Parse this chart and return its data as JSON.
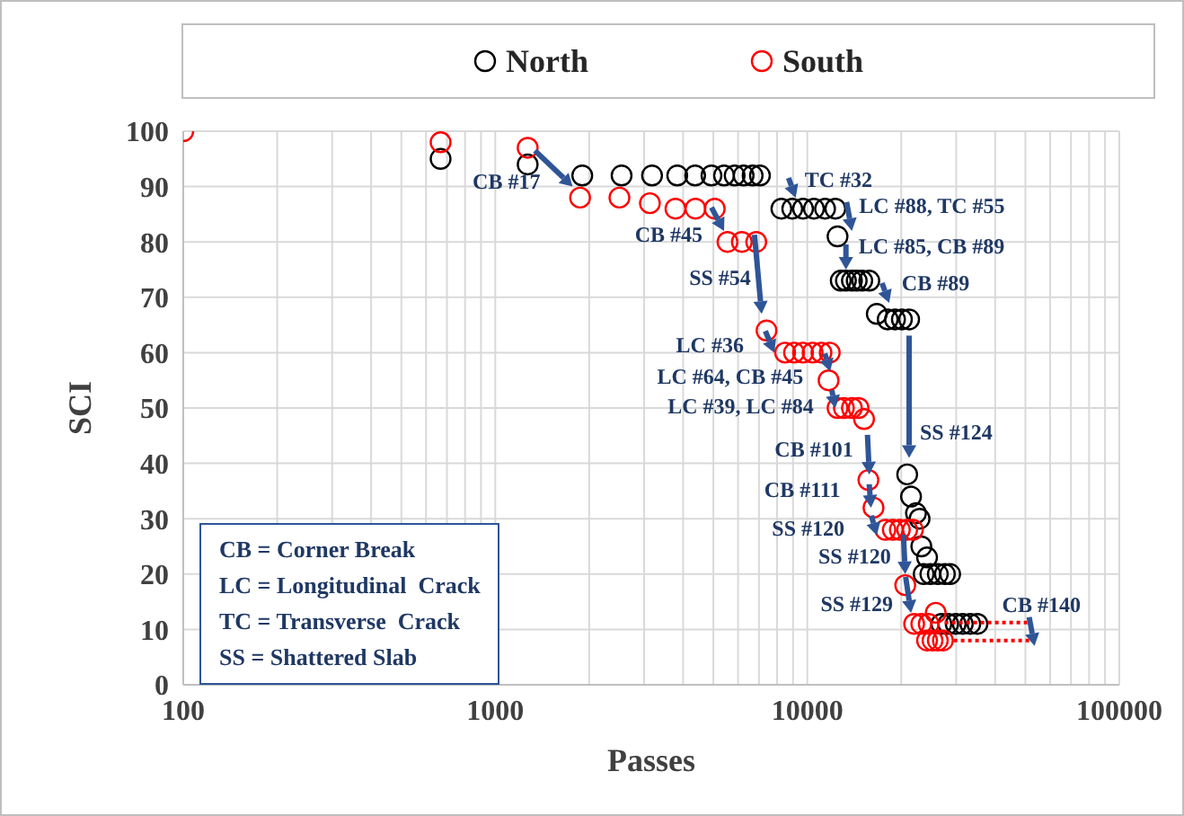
{
  "chart_data": {
    "type": "scatter",
    "xlabel": "Passes",
    "ylabel": "SCI",
    "log": "x",
    "grid": true,
    "legend": "top",
    "marker": "circle",
    "xlim": [
      100,
      100000
    ],
    "xticks": [
      100,
      {
        "value": 200,
        "label": null
      },
      {
        "value": 300,
        "label": null
      },
      {
        "value": 400,
        "label": null
      },
      {
        "value": 500,
        "label": null
      },
      {
        "value": 600,
        "label": null
      },
      {
        "value": 700,
        "label": null
      },
      {
        "value": 800,
        "label": null
      },
      {
        "value": 900,
        "label": null
      },
      1000,
      {
        "value": 2000,
        "label": null
      },
      {
        "value": 3000,
        "label": null
      },
      {
        "value": 4000,
        "label": null
      },
      {
        "value": 5000,
        "label": null
      },
      {
        "value": 6000,
        "label": null
      },
      {
        "value": 7000,
        "label": null
      },
      {
        "value": 8000,
        "label": null
      },
      {
        "value": 9000,
        "label": null
      },
      10000,
      {
        "value": 20000,
        "label": null
      },
      {
        "value": 30000,
        "label": null
      },
      {
        "value": 40000,
        "label": null
      },
      {
        "value": 50000,
        "label": null
      },
      {
        "value": 60000,
        "label": null
      },
      {
        "value": 70000,
        "label": null
      },
      {
        "value": 80000,
        "label": null
      },
      {
        "value": 90000,
        "label": null
      },
      100000
    ],
    "ylim": [
      0,
      100
    ],
    "yticks": [
      0,
      10,
      20,
      30,
      40,
      50,
      60,
      70,
      80,
      90,
      100
    ],
    "series": [
      {
        "name": "North",
        "color": "#000000",
        "x": [
          668,
          1270,
          1900,
          2540,
          3180,
          3830,
          4370,
          4930,
          5410,
          5850,
          6250,
          6680,
          7050,
          8260,
          8950,
          9690,
          10500,
          11400,
          12300,
          12500,
          12800,
          13300,
          13900,
          14400,
          15000,
          15800,
          16700,
          18100,
          19100,
          20100,
          21200,
          20900,
          21500,
          22300,
          22900,
          23200,
          24200,
          23600,
          24800,
          26200,
          27600,
          28700,
          26900,
          28300,
          29900,
          31500,
          33300,
          35100
        ],
        "values": [
          95,
          94,
          92,
          92,
          92,
          92,
          92,
          92,
          92,
          92,
          92,
          92,
          92,
          86,
          86,
          86,
          86,
          86,
          86,
          81,
          73,
          73,
          73,
          73,
          73,
          73,
          67,
          66,
          66,
          66,
          66,
          38,
          34,
          31,
          30,
          25,
          23,
          20,
          20,
          20,
          20,
          20,
          11,
          11,
          11,
          11,
          11,
          11
        ]
      },
      {
        "name": "South",
        "color": "#ff0000",
        "x": [
          100,
          668,
          1270,
          1870,
          2500,
          3130,
          3780,
          4380,
          5050,
          5550,
          6170,
          6860,
          7400,
          8490,
          9070,
          9690,
          10400,
          11100,
          11800,
          11700,
          12500,
          13100,
          13900,
          14600,
          15200,
          15700,
          16300,
          17800,
          18800,
          19800,
          20900,
          21800,
          20600,
          22000,
          23200,
          24500,
          25800,
          24200,
          25200,
          26200,
          27200
        ],
        "values": [
          100,
          98,
          97,
          88,
          88,
          87,
          86,
          86,
          86,
          80,
          80,
          80,
          64,
          60,
          60,
          60,
          60,
          60,
          60,
          55,
          50,
          50,
          50,
          50,
          48,
          37,
          32,
          28,
          28,
          28,
          28,
          28,
          18,
          11,
          11,
          11,
          13,
          8,
          8,
          8,
          8
        ]
      }
    ],
    "annotations": [
      "CB = Corner Break",
      "LC = Longitudinal  Crack",
      "TC = Transverse  Crack",
      "SS = Shattered Slab",
      {
        "text": "CB #17",
        "x": 1770,
        "y": 90
      },
      {
        "text": "CB #45",
        "x": 5410,
        "y": 82
      },
      {
        "text": "SS #54",
        "x": 7140,
        "y": 67
      },
      {
        "text": "LC #36",
        "x": 7840,
        "y": 60
      },
      {
        "text": "TC #32",
        "x": 9180,
        "y": 88
      },
      {
        "text": "LC #88, TC #55",
        "x": 13900,
        "y": 82
      },
      {
        "text": "LC #85, CB #89",
        "x": 13300,
        "y": 75
      },
      {
        "text": "CB #89",
        "x": 18300,
        "y": 69
      },
      {
        "text": "SS #124",
        "x": 21200,
        "y": 41
      },
      {
        "text": "LC #64, CB #45",
        "x": 12000,
        "y": 54
      },
      {
        "text": "LC #39, LC #84",
        "x": 12300,
        "y": 50
      },
      {
        "text": "CB #101",
        "x": 15800,
        "y": 38
      },
      {
        "text": "CB #111",
        "x": 16000,
        "y": 32
      },
      {
        "text": "SS #120",
        "x": 16700,
        "y": 27
      },
      {
        "text": "SS #120",
        "x": 20600,
        "y": 20
      },
      {
        "text": "SS #129",
        "x": 21500,
        "y": 13
      },
      {
        "text": "CB #140",
        "x": 27200,
        "y": 8
      }
    ]
  }
}
